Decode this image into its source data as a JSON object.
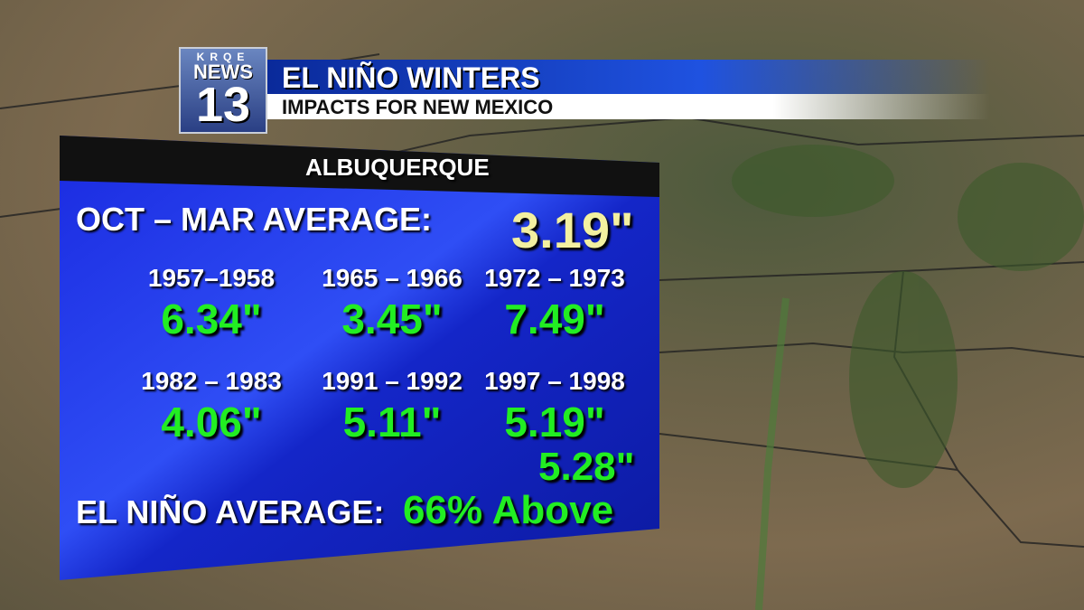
{
  "logo": {
    "station": "KRQE",
    "brand": "NEWS",
    "channel": "13"
  },
  "header": {
    "title": "EL NIÑO WINTERS",
    "subtitle": "IMPACTS FOR NEW MEXICO"
  },
  "panel": {
    "title": "ALBUQUERQUE",
    "normal": {
      "label": "OCT – MAR AVERAGE:",
      "value": "3.19\""
    },
    "winters": [
      {
        "years": "1957–1958",
        "value": "6.34\""
      },
      {
        "years": "1965 – 1966",
        "value": "3.45\""
      },
      {
        "years": "1972 – 1973",
        "value": "7.49\""
      },
      {
        "years": "1982 – 1983",
        "value": "4.06\""
      },
      {
        "years": "1991 – 1992",
        "value": "5.11\""
      },
      {
        "years": "1997 – 1998",
        "value": "5.19\""
      }
    ],
    "el_nino": {
      "label": "EL NIÑO AVERAGE:",
      "value": "5.28\"",
      "comparison": "66% Above"
    }
  }
}
